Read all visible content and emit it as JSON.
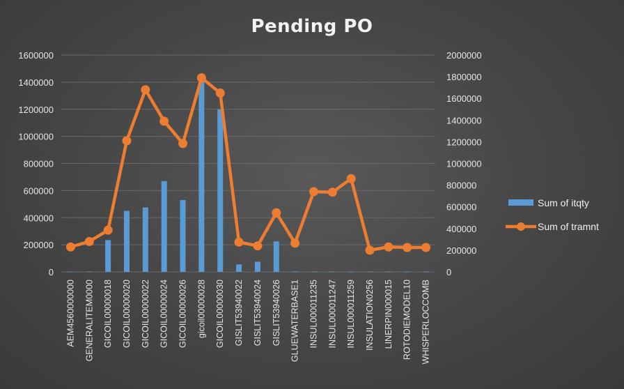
{
  "chart_data": {
    "type": "bar",
    "title": "Pending PO",
    "categories": [
      "AEM4560000000",
      "GENERALITEM0000",
      "GICOIL00000018",
      "GICOIL00000020",
      "GICOIL00000022",
      "GICOIL00000024",
      "GICOIL00000026",
      "gicoil00000028",
      "GICOIL00000030",
      "GISLIT53940022",
      "GISLIT53940024",
      "GISLIT53940026",
      "GLUEWATERBASE1",
      "INSUL000011235",
      "INSUL000011247",
      "INSUL000011259",
      "INSULATION0256",
      "LINERPIN000015",
      "ROTODIEMODEL10",
      "WHISPERLOCCOMB"
    ],
    "series": [
      {
        "name": "Sum of itqty",
        "type": "bar",
        "axis": "left",
        "color": "#5b9bd5",
        "values": [
          2000,
          3000,
          235000,
          450000,
          475000,
          670000,
          530000,
          1420000,
          1200000,
          55000,
          75000,
          225000,
          3000,
          2000,
          2000,
          2000,
          2000,
          2000,
          2000,
          2000
        ]
      },
      {
        "name": "Sum of tramnt",
        "type": "line",
        "axis": "right",
        "color": "#ed7d31",
        "values": [
          230000,
          280000,
          385000,
          1210000,
          1680000,
          1390000,
          1185000,
          1790000,
          1650000,
          275000,
          240000,
          545000,
          265000,
          740000,
          735000,
          860000,
          200000,
          230000,
          225000,
          225000
        ]
      }
    ],
    "y_left": {
      "min": 0,
      "max": 1600000,
      "step": 200000,
      "ticks": [
        "0",
        "200000",
        "400000",
        "600000",
        "800000",
        "1000000",
        "1200000",
        "1400000",
        "1600000"
      ]
    },
    "y_right": {
      "min": 0,
      "max": 2000000,
      "step": 200000,
      "ticks": [
        "0",
        "200000",
        "400000",
        "600000",
        "800000",
        "1000000",
        "1200000",
        "1400000",
        "1600000",
        "1800000",
        "2000000"
      ]
    },
    "grid": true,
    "legend_position": "right"
  }
}
